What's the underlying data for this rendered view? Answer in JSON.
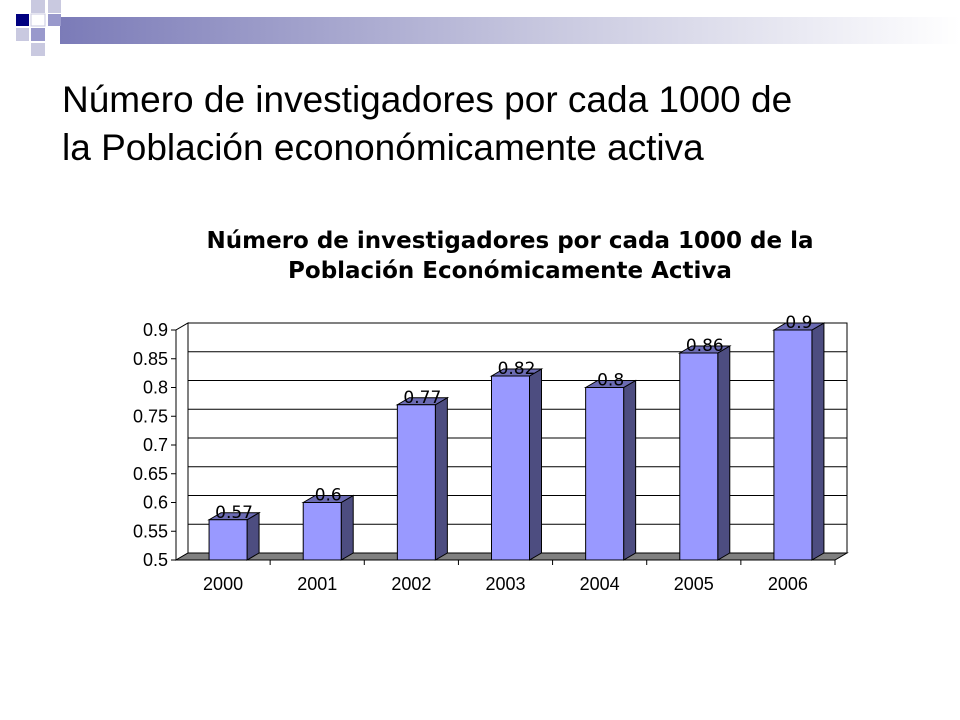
{
  "slide": {
    "title_line1": "Número de investigadores por cada 1000 de",
    "title_line2": "la Población econonómicamente activa",
    "accent_color": "#000080",
    "accent_light": "#9999cc"
  },
  "chart_data": {
    "type": "bar",
    "title_line1": "Número de investigadores por cada 1000 de la",
    "title_line2": "Población Económicamente Activa",
    "categories": [
      "2000",
      "2001",
      "2002",
      "2003",
      "2004",
      "2005",
      "2006"
    ],
    "values": [
      0.57,
      0.6,
      0.77,
      0.82,
      0.8,
      0.86,
      0.9
    ],
    "data_labels": [
      "0.57",
      "0.6",
      "0.77",
      "0.82",
      "0.8",
      "0.86",
      "0.9"
    ],
    "yticks": [
      "0.5",
      "0.55",
      "0.6",
      "0.65",
      "0.7",
      "0.75",
      "0.8",
      "0.85",
      "0.9"
    ],
    "ylim": [
      0.5,
      0.9
    ],
    "xlabel": "",
    "ylabel": "",
    "grid": true,
    "legend": false,
    "bar_color": "#9999ff",
    "bar_side_color": "#4d4d80",
    "bar_top_color": "#6b6bb3",
    "floor_color": "#808080"
  }
}
